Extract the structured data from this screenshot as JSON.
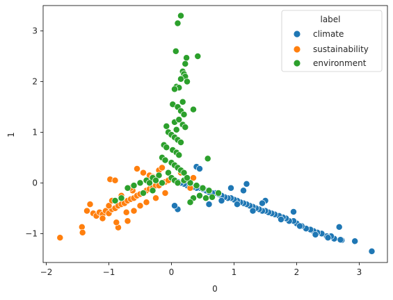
{
  "chart_data": {
    "type": "scatter",
    "title": "",
    "xlabel": "0",
    "ylabel": "1",
    "xlim": [
      -2.05,
      3.45
    ],
    "ylim": [
      -1.57,
      3.5
    ],
    "xticks": [
      "−2",
      "−1",
      "0",
      "1",
      "2",
      "3"
    ],
    "xtick_values": [
      -2,
      -1,
      0,
      1,
      2,
      3
    ],
    "yticks": [
      "−1",
      "0",
      "1",
      "2",
      "3"
    ],
    "ytick_values": [
      -1,
      0,
      1,
      2,
      3
    ],
    "grid": false,
    "legend": {
      "title": "label",
      "position": "top-right",
      "entries": [
        "climate",
        "sustainability",
        "environment"
      ]
    },
    "series": [
      {
        "name": "climate",
        "color": "#1f77b4",
        "x": [
          3.2,
          2.93,
          2.72,
          2.68,
          2.6,
          2.55,
          2.48,
          2.4,
          2.33,
          2.27,
          2.22,
          2.15,
          2.08,
          2.0,
          1.95,
          1.88,
          1.83,
          1.78,
          1.72,
          1.65,
          1.6,
          1.55,
          1.5,
          1.45,
          1.4,
          1.35,
          1.3,
          1.25,
          1.2,
          1.15,
          1.1,
          1.05,
          1.0,
          0.95,
          0.9,
          0.85,
          0.8,
          0.75,
          0.7,
          0.65,
          0.6,
          0.55,
          0.5,
          0.45,
          0.4,
          0.35,
          0.3,
          0.25,
          0.2,
          0.15,
          0.1,
          2.7,
          2.3,
          1.95,
          1.5,
          1.2,
          1.45,
          1.15,
          0.95,
          0.4,
          0.45,
          0.3,
          0.1,
          0.05,
          0.6,
          0.8,
          1.05,
          1.3,
          1.75,
          2.05,
          2.5
        ],
        "y": [
          -1.35,
          -1.15,
          -1.13,
          -0.87,
          -1.1,
          -1.05,
          -1.05,
          -1.0,
          -0.98,
          -0.95,
          -0.92,
          -0.9,
          -0.85,
          -0.8,
          -0.75,
          -0.75,
          -0.7,
          -0.68,
          -0.65,
          -0.62,
          -0.6,
          -0.58,
          -0.55,
          -0.55,
          -0.52,
          -0.5,
          -0.47,
          -0.45,
          -0.42,
          -0.4,
          -0.38,
          -0.35,
          -0.33,
          -0.3,
          -0.3,
          -0.28,
          -0.25,
          -0.22,
          -0.2,
          -0.2,
          -0.18,
          -0.15,
          -0.12,
          -0.1,
          -0.1,
          -0.08,
          -0.05,
          -0.05,
          -0.02,
          0.0,
          0.02,
          -1.12,
          -1.02,
          -0.57,
          -0.35,
          -0.02,
          -0.4,
          -0.15,
          -0.1,
          0.32,
          0.28,
          -0.38,
          -0.52,
          -0.45,
          -0.42,
          -0.35,
          -0.42,
          -0.55,
          -0.72,
          -0.85,
          -1.08
        ]
      },
      {
        "name": "sustainability",
        "color": "#ff7f0e",
        "x": [
          -1.78,
          -1.43,
          -1.42,
          -1.35,
          -1.3,
          -1.25,
          -1.2,
          -1.15,
          -1.1,
          -1.05,
          -1.0,
          -0.95,
          -0.9,
          -0.85,
          -0.8,
          -0.75,
          -0.7,
          -0.65,
          -0.6,
          -0.55,
          -0.5,
          -0.45,
          -0.4,
          -0.35,
          -0.3,
          -0.25,
          -0.2,
          -0.15,
          -0.1,
          -0.05,
          0.0,
          -0.98,
          -0.9,
          -0.85,
          -0.7,
          -0.6,
          -0.55,
          -0.45,
          -0.35,
          -0.3,
          -0.2,
          -0.15,
          -1.0,
          -0.95,
          -0.8,
          -0.62,
          0.15,
          0.35,
          0.3,
          -0.5,
          -0.4,
          -0.25,
          -0.1,
          -0.72,
          -1.1,
          -0.88,
          -0.65
        ],
        "y": [
          -1.08,
          -0.87,
          -0.98,
          -0.55,
          -0.42,
          -0.6,
          -0.65,
          -0.58,
          -0.62,
          -0.55,
          -0.6,
          -0.52,
          -0.5,
          -0.45,
          -0.42,
          -0.4,
          -0.35,
          -0.32,
          -0.3,
          -0.25,
          -0.22,
          -0.2,
          -0.15,
          -0.12,
          -0.1,
          -0.05,
          -0.05,
          0.0,
          0.02,
          0.05,
          0.1,
          0.07,
          0.05,
          -0.88,
          -0.75,
          -0.55,
          0.28,
          0.2,
          0.15,
          0.12,
          0.25,
          0.3,
          -0.45,
          -0.35,
          -0.25,
          -0.15,
          0.2,
          0.1,
          -0.1,
          -0.45,
          -0.38,
          -0.3,
          -0.2,
          -0.58,
          -0.7,
          -0.78,
          -0.1
        ]
      },
      {
        "name": "environment",
        "color": "#2ca02c",
        "x": [
          0.15,
          0.1,
          0.07,
          0.42,
          0.24,
          0.22,
          0.18,
          0.2,
          0.22,
          0.15,
          0.25,
          0.08,
          0.12,
          0.05,
          0.35,
          0.18,
          0.02,
          0.1,
          0.15,
          0.2,
          -0.08,
          0.05,
          0.12,
          0.18,
          0.22,
          0.08,
          -0.05,
          0.0,
          0.05,
          0.1,
          0.15,
          -0.12,
          -0.08,
          0.02,
          0.08,
          0.12,
          -0.15,
          -0.1,
          0.0,
          0.05,
          0.1,
          0.15,
          0.2,
          -0.2,
          -0.3,
          -0.4,
          -0.5,
          -0.6,
          -0.7,
          0.3,
          0.4,
          0.5,
          0.6,
          0.75,
          0.58,
          -0.05,
          0.0,
          0.05,
          0.1,
          0.2,
          0.25,
          -0.15,
          -0.25,
          0.35,
          0.45,
          0.55,
          -0.3,
          -0.45,
          -0.35,
          -0.9,
          -0.8,
          0.3,
          0.65
        ],
        "y": [
          3.3,
          3.15,
          2.6,
          2.5,
          2.47,
          2.35,
          2.2,
          2.15,
          2.1,
          2.05,
          2.0,
          1.9,
          1.88,
          1.85,
          1.45,
          1.6,
          1.55,
          1.5,
          1.42,
          1.35,
          1.12,
          1.2,
          1.25,
          1.15,
          1.1,
          1.05,
          1.0,
          0.95,
          0.9,
          0.85,
          0.8,
          0.75,
          0.7,
          0.65,
          0.6,
          0.55,
          0.5,
          0.45,
          0.4,
          0.35,
          0.3,
          0.25,
          0.2,
          0.15,
          0.1,
          0.05,
          0.0,
          -0.05,
          -0.1,
          0.0,
          -0.05,
          -0.1,
          -0.15,
          -0.2,
          0.48,
          0.2,
          0.1,
          0.05,
          0.0,
          0.05,
          0.1,
          0.0,
          0.05,
          -0.3,
          -0.25,
          -0.3,
          -0.15,
          -0.2,
          0.0,
          -0.35,
          -0.3,
          -0.38,
          -0.28
        ]
      }
    ]
  }
}
